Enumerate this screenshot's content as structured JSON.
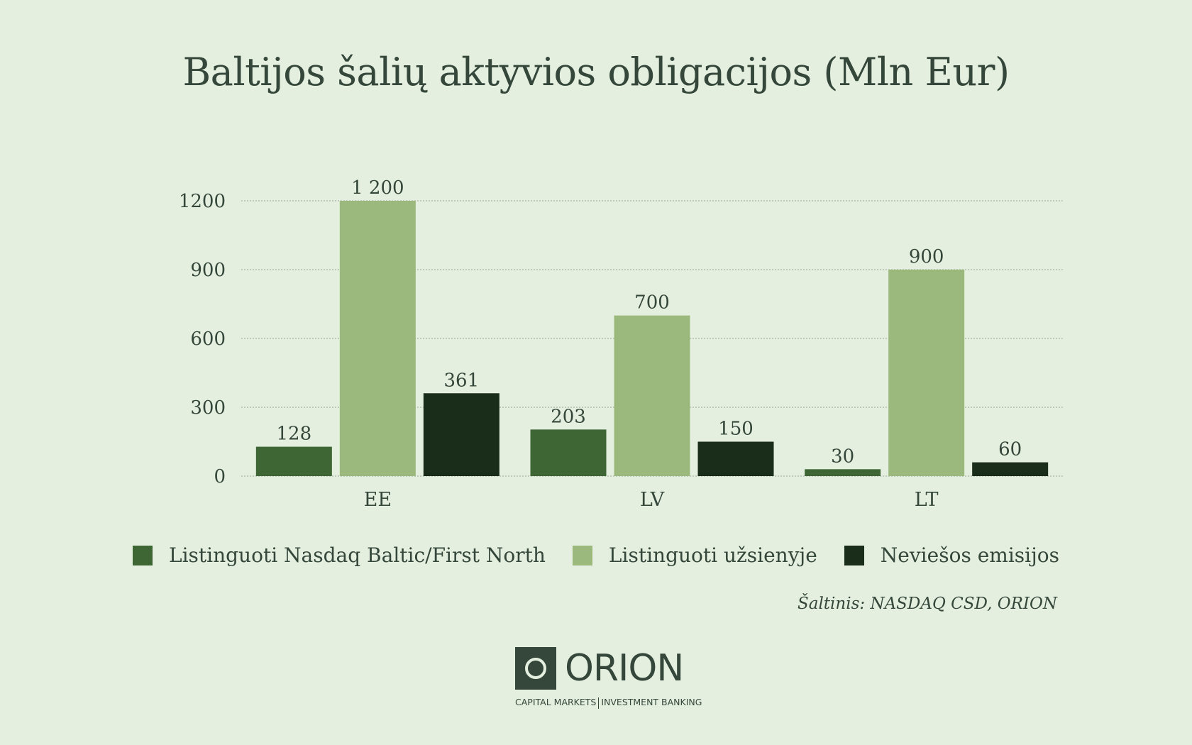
{
  "chart_data": {
    "type": "bar",
    "title": "Baltijos šalių aktyvios obligacijos (Mln Eur)",
    "categories": [
      "EE",
      "LV",
      "LT"
    ],
    "series": [
      {
        "name": "Listinguoti Nasdaq Baltic/First North",
        "values": [
          128,
          203,
          30
        ],
        "labels": [
          "128",
          "203",
          "30"
        ],
        "color": "#3d6634"
      },
      {
        "name": "Listinguoti užsienyje",
        "values": [
          1200,
          700,
          900
        ],
        "labels": [
          "1 200",
          "700",
          "900"
        ],
        "color": "#9bb87d"
      },
      {
        "name": "Neviešos emisijos",
        "values": [
          361,
          150,
          60
        ],
        "labels": [
          "361",
          "150",
          "60"
        ],
        "color": "#1a2c1a"
      }
    ],
    "yticks": [
      "0",
      "300",
      "600",
      "900",
      "1200"
    ],
    "ylim": [
      0,
      1200
    ],
    "grid": true,
    "legend_position": "bottom"
  },
  "source": "Šaltinis: NASDAQ CSD, ORION",
  "logo": {
    "name": "ORION",
    "tagline_left": "CAPITAL MARKETS",
    "tagline_right": "INVESTMENT BANKING"
  },
  "colors": {
    "background": "#e4efdf",
    "text": "#34473a",
    "grid": "#9aa59a"
  }
}
